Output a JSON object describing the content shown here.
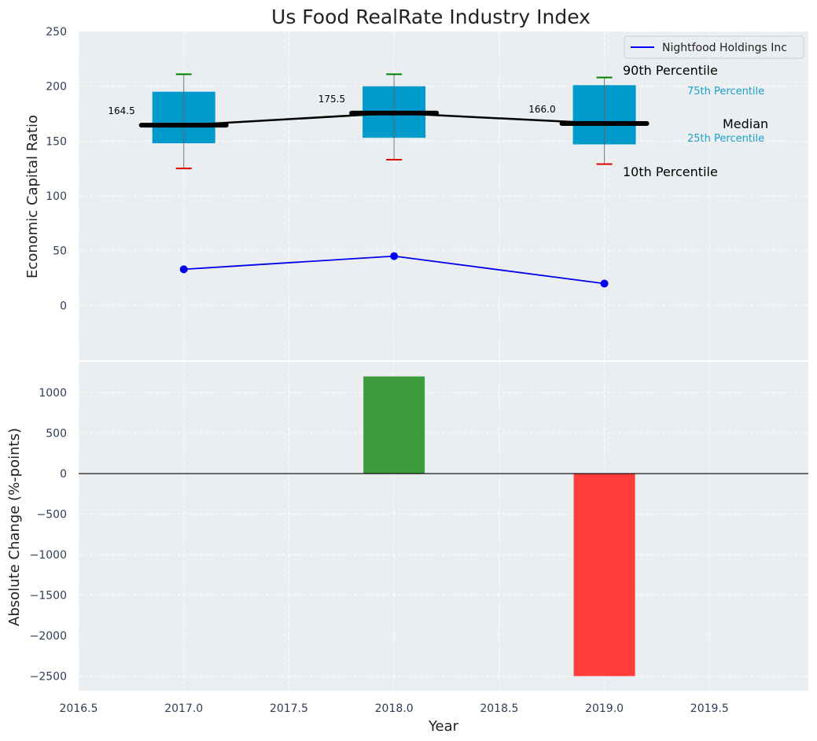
{
  "chart_data": [
    {
      "type": "box",
      "title": "Us Food RealRate Industry Index",
      "ylabel": "Economic Capital Ratio",
      "ylim": [
        -50,
        250
      ],
      "yticks": [
        0,
        50,
        100,
        150,
        200,
        250
      ],
      "x": [
        2017,
        2018,
        2019
      ],
      "boxes": [
        {
          "year": 2017,
          "p10": 125,
          "p25": 148,
          "median": 164.5,
          "p75": 195,
          "p90": 211,
          "median_label": "164.5"
        },
        {
          "year": 2018,
          "p10": 133,
          "p25": 153,
          "median": 175.5,
          "p75": 200,
          "p90": 211,
          "median_label": "175.5"
        },
        {
          "year": 2019,
          "p10": 129,
          "p25": 147,
          "median": 166.0,
          "p75": 201,
          "p90": 208,
          "median_label": "166.0"
        }
      ],
      "series": [
        {
          "name": "Nightfood Holdings Inc",
          "color": "#0000ee",
          "values": [
            33,
            45,
            20
          ]
        }
      ],
      "annotations": {
        "p90": "90th Percentile",
        "p75": "75th Percentile",
        "median": "Median",
        "p25": "25th Percentile",
        "p10": "10th Percentile"
      },
      "legend_position": "top-right",
      "grid": true
    },
    {
      "type": "bar",
      "ylabel": "Absolute Change (%-points)",
      "xlabel": "Year",
      "ylim": [
        -2680,
        1380
      ],
      "yticks": [
        1000,
        500,
        0,
        -500,
        -1000,
        -1500,
        -2000,
        -2500
      ],
      "xlim": [
        2016.5,
        2019.97
      ],
      "xticks": [
        "2016.5",
        "2017.0",
        "2017.5",
        "2018.0",
        "2018.5",
        "2019.0",
        "2019.5"
      ],
      "bars": [
        {
          "x": 2018,
          "value": 1200,
          "color": "#3c9c3c"
        },
        {
          "x": 2019,
          "value": -2500,
          "color": "#ff3b3b"
        }
      ],
      "grid": true
    }
  ],
  "colors": {
    "panel_bg": "#eaeef0",
    "box_fill": "#009acd",
    "median_line": "#000000",
    "whisker_top": "#008000",
    "whisker_bottom": "#dd0000",
    "pct_small_text": "#1a9fc9"
  }
}
